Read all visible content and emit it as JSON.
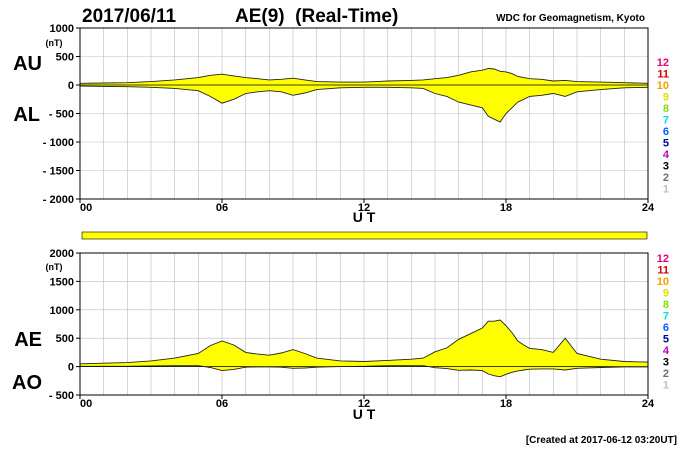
{
  "header": {
    "date": "2017/06/11",
    "title": "AE(9)  (Real-Time)",
    "source": "WDC for Geomagnetism, Kyoto"
  },
  "footer": {
    "created": "[Created at 2017-06-12 03:20UT]"
  },
  "station_legend": {
    "labels": [
      "12",
      "11",
      "10",
      "9",
      "8",
      "7",
      "6",
      "5",
      "4",
      "3",
      "2",
      "1"
    ],
    "colors": [
      "#e8007f",
      "#d40000",
      "#f0a000",
      "#e0e000",
      "#80e000",
      "#00e0e0",
      "#0060ff",
      "#0000a0",
      "#c000c0",
      "#000000",
      "#707070",
      "#c0c0c0"
    ]
  },
  "chart_data": [
    {
      "type": "area",
      "panel": "AU/AL",
      "upper_label": "AU",
      "lower_label": "AL",
      "unit_label": "(nT)",
      "xlabel": "U T",
      "ylim": [
        -2000,
        1000
      ],
      "yticks": [
        1000,
        500,
        0,
        -500,
        -1000,
        -1500,
        -2000
      ],
      "ytick_labels": [
        "1000",
        "500",
        "0",
        "- 500",
        "- 1000",
        "- 1500",
        "- 2000"
      ],
      "xticks": [
        0,
        6,
        12,
        18,
        24
      ],
      "xtick_labels": [
        "00",
        "06",
        "12",
        "18",
        "24"
      ],
      "grid": true,
      "fill_color": "#ffff00",
      "x": [
        0,
        1,
        2,
        3,
        4,
        5,
        5.5,
        6,
        6.5,
        7,
        7.5,
        8,
        8.5,
        9,
        9.5,
        10,
        11,
        12,
        13,
        14,
        14.5,
        15,
        15.5,
        16,
        16.5,
        17,
        17.25,
        17.5,
        17.75,
        18,
        18.25,
        18.5,
        18.75,
        19,
        19.5,
        20,
        20.5,
        21,
        22,
        23,
        24
      ],
      "series": [
        {
          "name": "AU",
          "values": [
            30,
            35,
            40,
            60,
            90,
            130,
            170,
            190,
            160,
            130,
            110,
            90,
            100,
            120,
            90,
            60,
            50,
            50,
            70,
            80,
            90,
            110,
            130,
            170,
            230,
            260,
            290,
            280,
            240,
            230,
            200,
            150,
            130,
            110,
            100,
            70,
            80,
            60,
            50,
            40,
            30
          ]
        },
        {
          "name": "AL",
          "values": [
            -20,
            -25,
            -30,
            -40,
            -60,
            -100,
            -200,
            -320,
            -250,
            -150,
            -120,
            -100,
            -120,
            -180,
            -140,
            -80,
            -50,
            -40,
            -40,
            -50,
            -60,
            -150,
            -200,
            -300,
            -350,
            -400,
            -550,
            -600,
            -650,
            -500,
            -400,
            -300,
            -250,
            -200,
            -180,
            -150,
            -200,
            -120,
            -80,
            -50,
            -40
          ]
        }
      ]
    },
    {
      "type": "area",
      "panel": "AE/AO",
      "upper_label": "AE",
      "lower_label": "AO",
      "unit_label": "(nT)",
      "xlabel": "U T",
      "ylim": [
        -500,
        2000
      ],
      "yticks": [
        2000,
        1500,
        1000,
        500,
        0,
        -500
      ],
      "ytick_labels": [
        "2000",
        "1500",
        "1000",
        "500",
        "0",
        "- 500"
      ],
      "xticks": [
        0,
        6,
        12,
        18,
        24
      ],
      "xtick_labels": [
        "00",
        "06",
        "12",
        "18",
        "24"
      ],
      "grid": true,
      "fill_color": "#ffff00",
      "x": [
        0,
        1,
        2,
        3,
        4,
        5,
        5.5,
        6,
        6.5,
        7,
        7.5,
        8,
        8.5,
        9,
        9.5,
        10,
        11,
        12,
        13,
        14,
        14.5,
        15,
        15.5,
        16,
        16.5,
        17,
        17.25,
        17.5,
        17.75,
        18,
        18.25,
        18.5,
        18.75,
        19,
        19.5,
        20,
        20.5,
        21,
        22,
        23,
        24
      ],
      "series": [
        {
          "name": "AE",
          "values": [
            50,
            60,
            70,
            100,
            150,
            230,
            370,
            450,
            380,
            250,
            220,
            200,
            240,
            300,
            230,
            150,
            100,
            90,
            110,
            130,
            150,
            260,
            330,
            480,
            580,
            680,
            800,
            800,
            820,
            720,
            600,
            450,
            380,
            320,
            300,
            250,
            500,
            230,
            130,
            90,
            80
          ]
        },
        {
          "name": "AO",
          "values": [
            5,
            5,
            5,
            10,
            15,
            15,
            -15,
            -70,
            -50,
            -10,
            -5,
            -5,
            -10,
            -30,
            -25,
            -10,
            0,
            5,
            15,
            15,
            15,
            -20,
            -35,
            -65,
            -60,
            -70,
            -130,
            -160,
            -180,
            -135,
            -100,
            -75,
            -60,
            -45,
            -40,
            -40,
            -60,
            -30,
            -15,
            -5,
            -5
          ]
        }
      ]
    }
  ]
}
